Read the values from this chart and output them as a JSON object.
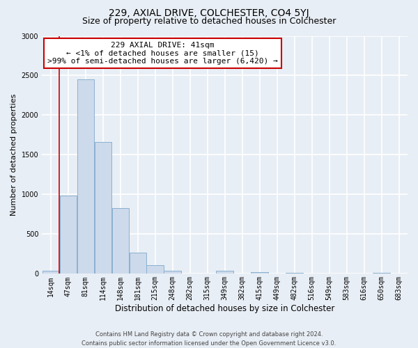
{
  "title": "229, AXIAL DRIVE, COLCHESTER, CO4 5YJ",
  "subtitle": "Size of property relative to detached houses in Colchester",
  "xlabel": "Distribution of detached houses by size in Colchester",
  "ylabel": "Number of detached properties",
  "categories": [
    "14sqm",
    "47sqm",
    "81sqm",
    "114sqm",
    "148sqm",
    "181sqm",
    "215sqm",
    "248sqm",
    "282sqm",
    "315sqm",
    "349sqm",
    "382sqm",
    "415sqm",
    "449sqm",
    "482sqm",
    "516sqm",
    "549sqm",
    "583sqm",
    "616sqm",
    "650sqm",
    "683sqm"
  ],
  "values": [
    40,
    990,
    2450,
    1660,
    830,
    270,
    110,
    35,
    0,
    0,
    35,
    0,
    20,
    0,
    15,
    0,
    0,
    0,
    0,
    15,
    0
  ],
  "bar_color": "#cddaeb",
  "bar_edge_color": "#8ab0d0",
  "ylim": [
    0,
    3000
  ],
  "yticks": [
    0,
    500,
    1000,
    1500,
    2000,
    2500,
    3000
  ],
  "vline_x": 0.5,
  "vline_color": "#cc0000",
  "annotation_line1": "229 AXIAL DRIVE: 41sqm",
  "annotation_line2": "← <1% of detached houses are smaller (15)",
  "annotation_line3": ">99% of semi-detached houses are larger (6,420) →",
  "annotation_box_facecolor": "#ffffff",
  "annotation_box_edgecolor": "#cc0000",
  "footer_line1": "Contains HM Land Registry data © Crown copyright and database right 2024.",
  "footer_line2": "Contains public sector information licensed under the Open Government Licence v3.0.",
  "bg_color": "#e8eef5",
  "grid_color": "#ffffff",
  "title_fontsize": 10,
  "subtitle_fontsize": 9,
  "xlabel_fontsize": 8.5,
  "ylabel_fontsize": 8,
  "tick_fontsize": 7,
  "annot_fontsize": 8,
  "footer_fontsize": 6
}
